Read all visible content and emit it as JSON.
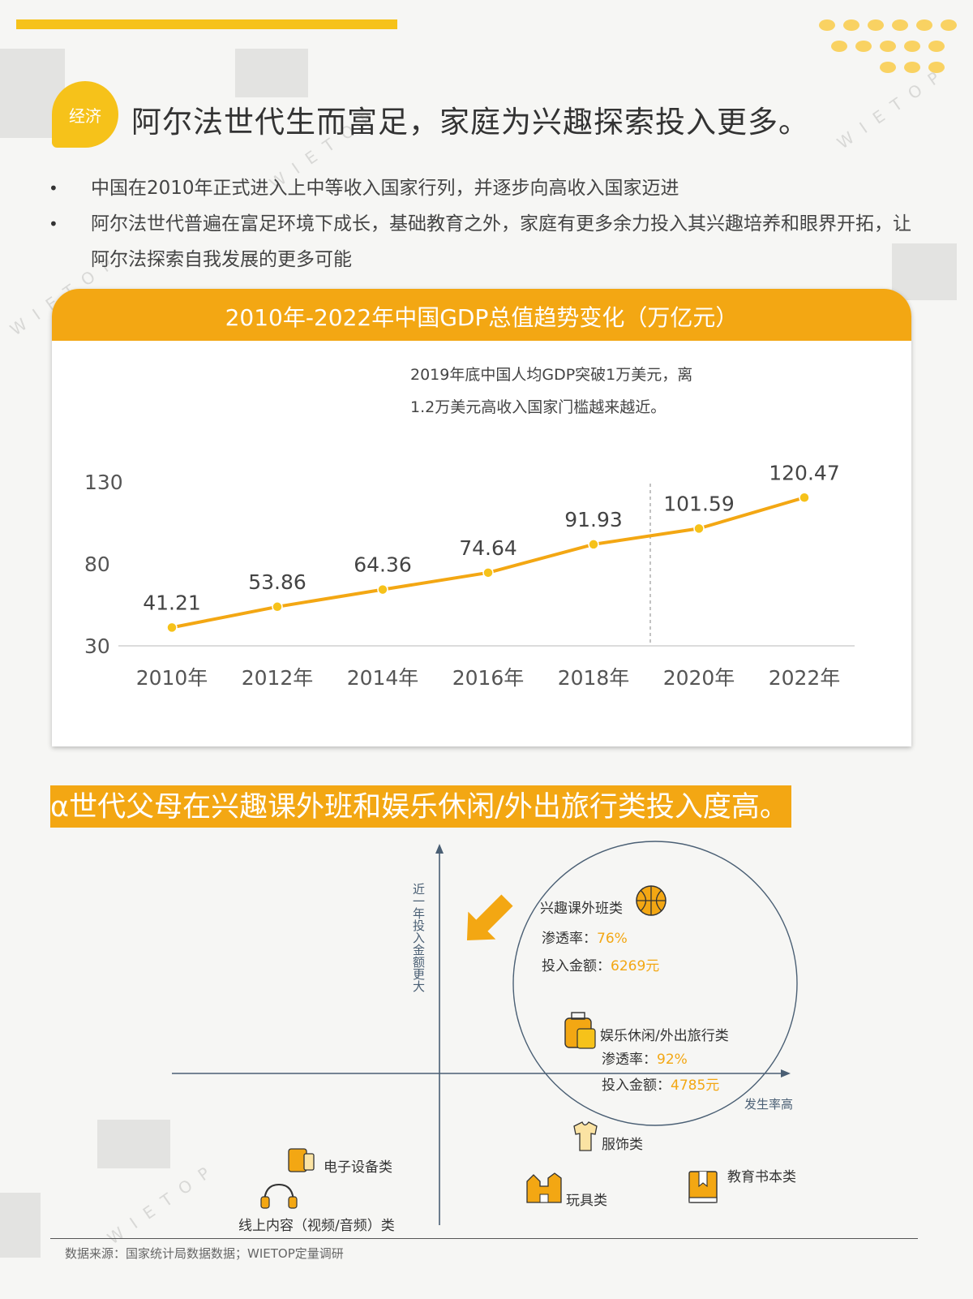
{
  "header": {
    "tag": "经济",
    "title": "阿尔法世代生而富足，家庭为兴趣探索投入更多。"
  },
  "bullets": [
    "中国在2010年正式进入上中等收入国家行列，并逐步向高收入国家迈进",
    "阿尔法世代普遍在富足环境下成长，基础教育之外，家庭有更多余力投入其兴趣培养和眼界开拓，让阿尔法探索自我发展的更多可能"
  ],
  "watermark": "WIETOP",
  "colors": {
    "accent": "#f3a713",
    "accent_light": "#f6c21a",
    "axis": "#4a5f74",
    "grid": "#cccccc"
  },
  "chart_data": [
    {
      "type": "line",
      "title": "2010年-2022年中国GDP总值趋势变化（万亿元）",
      "categories": [
        "2010年",
        "2012年",
        "2014年",
        "2016年",
        "2018年",
        "2020年",
        "2022年"
      ],
      "values": [
        41.21,
        53.86,
        64.36,
        74.64,
        91.93,
        101.59,
        120.47
      ],
      "value_labels": [
        "41.21",
        "53.86",
        "64.36",
        "74.64",
        "91.93",
        "101.59",
        "120.47"
      ],
      "yticks": [
        30,
        80,
        130
      ],
      "ylim": [
        30,
        130
      ],
      "grid": false,
      "annotation": {
        "lines": [
          "2019年底中国人均GDP突破1万美元，离",
          "1.2万美元高收入国家门槛越来越近。"
        ],
        "marker_between": [
          "2018年",
          "2020年"
        ]
      }
    },
    {
      "type": "scatter",
      "title": "α世代父母在兴趣课外班和娱乐休闲/外出旅行类投入度高。",
      "x_axis_label": "发生率高",
      "y_axis_label": "近一年投入金额更大",
      "items": [
        {
          "name": "兴趣课外班类",
          "icon": "basketball-icon",
          "rate_label": "渗透率：",
          "rate": "76%",
          "amount_label": "投入金额：",
          "amount": "6269元"
        },
        {
          "name": "娱乐休闲/外出旅行类",
          "icon": "luggage-icon",
          "rate_label": "渗透率：",
          "rate": "92%",
          "amount_label": "投入金额：",
          "amount": "4785元"
        },
        {
          "name": "服饰类",
          "icon": "tshirt-icon"
        },
        {
          "name": "电子设备类",
          "icon": "devices-icon"
        },
        {
          "name": "线上内容（视频/音频）类",
          "icon": "headphones-icon"
        },
        {
          "name": "玩具类",
          "icon": "toy-castle-icon"
        },
        {
          "name": "教育书本类",
          "icon": "book-icon"
        }
      ]
    }
  ],
  "footer": {
    "source": "数据来源：国家统计局数据数据；WIETOP定量调研"
  }
}
